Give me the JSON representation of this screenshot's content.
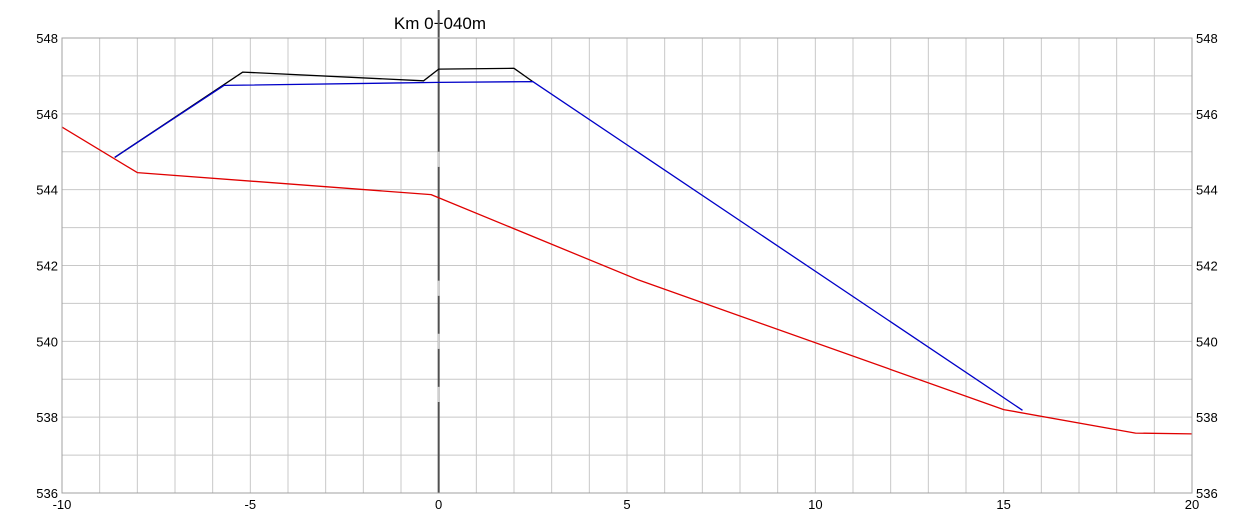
{
  "chart_data": {
    "type": "line",
    "title": "Km 0+040m",
    "xlabel": "",
    "ylabel": "",
    "xlim": [
      -10,
      20
    ],
    "ylim": [
      536,
      548
    ],
    "grid": true,
    "x_tick_labels": [
      "-10",
      "-5",
      "0",
      "5",
      "10",
      "15",
      "20"
    ],
    "y_tick_labels": [
      "536",
      "538",
      "540",
      "542",
      "544",
      "546",
      "548"
    ],
    "series": [
      {
        "color": "#000000",
        "points": [
          [
            -8.6,
            544.85
          ],
          [
            -5.2,
            547.1
          ],
          [
            -0.4,
            546.87
          ],
          [
            0,
            547.18
          ],
          [
            2,
            547.2
          ],
          [
            2.5,
            546.85
          ]
        ]
      },
      {
        "color": "#0000c8",
        "points": [
          [
            -8.6,
            544.85
          ],
          [
            -5.7,
            546.75
          ],
          [
            0,
            546.83
          ],
          [
            2.5,
            546.85
          ],
          [
            15.5,
            538.18
          ]
        ]
      },
      {
        "color": "#e00000",
        "points": [
          [
            -10,
            545.65
          ],
          [
            -8,
            544.45
          ],
          [
            -0.2,
            543.87
          ],
          [
            5.3,
            541.62
          ],
          [
            15.0,
            538.2
          ],
          [
            18.5,
            537.58
          ],
          [
            20,
            537.56
          ]
        ]
      }
    ],
    "centerline": {
      "x": 0,
      "color": "#505050"
    }
  }
}
